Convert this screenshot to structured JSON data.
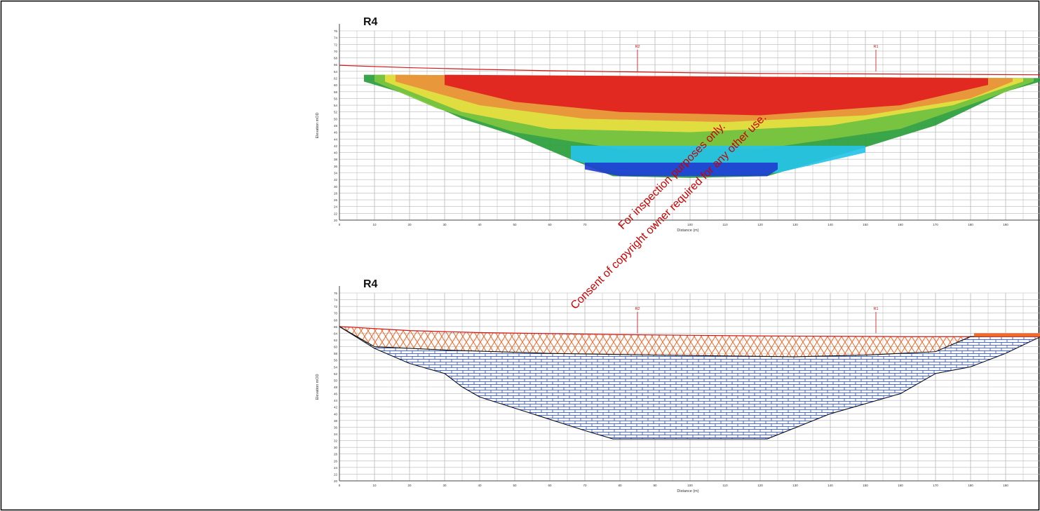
{
  "page": {
    "background": "#ffffff"
  },
  "watermark": {
    "line1": "For inspection purposes only.",
    "line2": "Consent of copyright owner required for any other use.",
    "color": "#cc0000"
  },
  "chart_data": [
    {
      "type": "heatmap",
      "title": "R4",
      "xlabel": "Distance (m)",
      "ylabel": "Elevation mOD",
      "xlim": [
        0,
        200
      ],
      "ylim": [
        20,
        76
      ],
      "x_ticks": [
        0,
        10,
        20,
        30,
        40,
        50,
        60,
        70,
        80,
        90,
        100,
        110,
        120,
        130,
        140,
        150,
        160,
        170,
        180,
        190
      ],
      "y_ticks": [
        20,
        22,
        24,
        26,
        28,
        30,
        32,
        34,
        36,
        38,
        40,
        42,
        44,
        46,
        48,
        50,
        52,
        54,
        56,
        58,
        60,
        62,
        64,
        66,
        68,
        70,
        72,
        74,
        76
      ],
      "grid": true,
      "ground_surface": {
        "x": [
          0,
          20,
          40,
          60,
          80,
          100,
          120,
          140,
          160,
          180,
          200
        ],
        "y": [
          65.8,
          65.1,
          64.6,
          64.2,
          63.9,
          63.6,
          63.4,
          63.3,
          63.2,
          63.1,
          63.0
        ]
      },
      "markers": [
        {
          "label": "R2",
          "x": 85
        },
        {
          "label": "R1",
          "x": 153
        }
      ],
      "layers": [
        {
          "color": "#2a9d3a",
          "top": [
            [
              7,
              63
            ],
            [
              200,
              62
            ]
          ],
          "bottom": [
            [
              7,
              61
            ],
            [
              20,
              57
            ],
            [
              35,
              50
            ],
            [
              50,
              45
            ],
            [
              66,
              38
            ],
            [
              78,
              33
            ],
            [
              100,
              32.5
            ],
            [
              122,
              33
            ],
            [
              145,
              40
            ],
            [
              170,
              48
            ],
            [
              190,
              58
            ],
            [
              200,
              61
            ]
          ]
        },
        {
          "color": "#7ec63f",
          "top": [
            [
              10,
              63
            ],
            [
              198,
              62
            ]
          ],
          "bottom": [
            [
              10,
              61
            ],
            [
              28,
              53
            ],
            [
              50,
              46
            ],
            [
              80,
              41
            ],
            [
              120,
              41
            ],
            [
              160,
              47
            ],
            [
              185,
              56
            ],
            [
              198,
              61
            ]
          ]
        },
        {
          "color": "#e8e040",
          "top": [
            [
              13,
              63
            ],
            [
              195,
              62
            ]
          ],
          "bottom": [
            [
              13,
              61
            ],
            [
              35,
              52
            ],
            [
              60,
              47
            ],
            [
              100,
              46
            ],
            [
              140,
              48
            ],
            [
              175,
              54
            ],
            [
              195,
              61
            ]
          ]
        },
        {
          "color": "#e8903a",
          "top": [
            [
              16,
              63
            ],
            [
              192,
              62
            ]
          ],
          "bottom": [
            [
              16,
              61
            ],
            [
              40,
              54
            ],
            [
              70,
              50
            ],
            [
              110,
              49
            ],
            [
              150,
              51
            ],
            [
              180,
              56
            ],
            [
              192,
              61
            ]
          ]
        },
        {
          "color": "#e02020",
          "top": [
            [
              30,
              63
            ],
            [
              185,
              62
            ]
          ],
          "bottom": [
            [
              30,
              60
            ],
            [
              50,
              55
            ],
            [
              80,
              52
            ],
            [
              120,
              51
            ],
            [
              160,
              54
            ],
            [
              185,
              60
            ]
          ]
        },
        {
          "color": "#27c3e8",
          "top": [
            [
              66,
              42
            ],
            [
              150,
              42
            ]
          ],
          "bottom": [
            [
              66,
              38
            ],
            [
              80,
              34
            ],
            [
              100,
              33
            ],
            [
              125,
              34
            ],
            [
              150,
              40
            ]
          ]
        },
        {
          "color": "#1f3fd0",
          "top": [
            [
              70,
              37
            ],
            [
              125,
              37
            ]
          ],
          "bottom": [
            [
              70,
              35
            ],
            [
              80,
              33
            ],
            [
              100,
              33
            ],
            [
              122,
              33
            ],
            [
              125,
              35
            ]
          ]
        }
      ]
    },
    {
      "type": "area",
      "title": "R4",
      "xlabel": "Distance (m)",
      "ylabel": "Elevation mOD",
      "xlim": [
        0,
        200
      ],
      "ylim": [
        20,
        76
      ],
      "x_ticks": [
        0,
        10,
        20,
        30,
        40,
        50,
        60,
        70,
        80,
        90,
        100,
        110,
        120,
        130,
        140,
        150,
        160,
        170,
        180,
        190
      ],
      "y_ticks": [
        20,
        22,
        24,
        26,
        28,
        30,
        32,
        34,
        36,
        38,
        40,
        42,
        44,
        46,
        48,
        50,
        52,
        54,
        56,
        58,
        60,
        62,
        64,
        66,
        68,
        70,
        72,
        74,
        76
      ],
      "grid": true,
      "markers": [
        {
          "label": "R2",
          "x": 85
        },
        {
          "label": "R1",
          "x": 153
        }
      ],
      "surface": {
        "x": [
          0,
          20,
          40,
          60,
          80,
          100,
          120,
          140,
          160,
          180,
          200
        ],
        "y": [
          66,
          64.8,
          64.2,
          63.9,
          63.6,
          63.4,
          63.2,
          63.1,
          63.0,
          63.0,
          63.0
        ]
      },
      "upper_boundary": {
        "x": [
          0,
          10,
          30,
          60,
          90,
          130,
          150,
          170,
          180,
          200
        ],
        "y": [
          66,
          60,
          59,
          58,
          57.5,
          57,
          57.5,
          58.5,
          63,
          63.5
        ]
      },
      "lower_boundary": {
        "x": [
          0,
          10,
          20,
          30,
          35,
          40,
          55,
          70,
          78,
          100,
          122,
          140,
          160,
          170,
          180,
          190,
          200
        ],
        "y": [
          66,
          59.5,
          55,
          52,
          48,
          45,
          40,
          35,
          32.5,
          32.5,
          32.5,
          40,
          46,
          52,
          54,
          58,
          63
        ]
      },
      "upper_color": "#f06a2a",
      "lower_color": "#1a3fd6"
    }
  ]
}
